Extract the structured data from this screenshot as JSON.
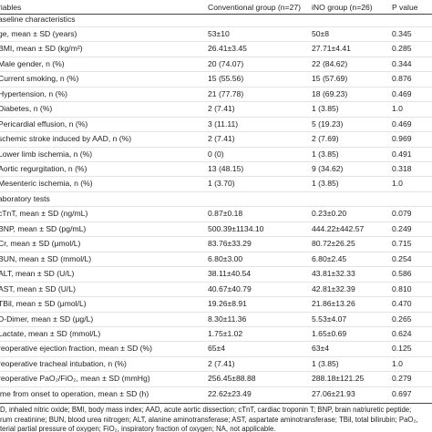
{
  "table": {
    "header": [
      "riables",
      "Conventional group (n=27)",
      "iNO group (n=26)",
      "P value"
    ],
    "rows": [
      [
        "aseline characteristics"
      ],
      [
        "ge, mean ± SD (years)",
        "53±10",
        "50±8",
        "0.345"
      ],
      [
        "BMI, mean ± SD (kg/m²)",
        "26.41±3.45",
        "27.71±4.41",
        "0.285"
      ],
      [
        "Male gender, n (%)",
        "20 (74.07)",
        "22 (84.62)",
        "0.344"
      ],
      [
        "Current smoking, n (%)",
        "15 (55.56)",
        "15 (57.69)",
        "0.876"
      ],
      [
        "Hypertension, n (%)",
        "21 (77.78)",
        "18 (69.23)",
        "0.469"
      ],
      [
        "Diabetes, n (%)",
        "2 (7.41)",
        "1 (3.85)",
        "1.0"
      ],
      [
        "Pericardial effusion, n (%)",
        "3 (11.11)",
        "5 (19.23)",
        "0.469"
      ],
      [
        "schemic stroke induced by AAD, n (%)",
        "2 (7.41)",
        "2 (7.69)",
        "0.969"
      ],
      [
        "Lower limb ischemia, n (%)",
        "0 (0)",
        "1 (3.85)",
        "0.491"
      ],
      [
        "Aortic regurgitation, n (%)",
        "13 (48.15)",
        "9 (34.62)",
        "0.318"
      ],
      [
        "Mesenteric ischemia, n (%)",
        "1 (3.70)",
        "1 (3.85)",
        "1.0"
      ],
      [
        "aboratory tests"
      ],
      [
        "cTnT, mean ± SD (ng/mL)",
        "0.87±0.18",
        "0.23±0.20",
        "0.079"
      ],
      [
        "BNP, mean ± SD (pg/mL)",
        "500.39±1134.10",
        "444.22±442.57",
        "0.249"
      ],
      [
        "Cr, mean ± SD (μmol/L)",
        "83.76±33.29",
        "80.72±26.25",
        "0.715"
      ],
      [
        "BUN, mean ± SD (mmol/L)",
        "6.80±3.00",
        "6.80±2.45",
        "0.254"
      ],
      [
        "ALT, mean ± SD (U/L)",
        "38.11±40.54",
        "43.81±32.33",
        "0.586"
      ],
      [
        "AST, mean ± SD (U/L)",
        "40.67±40.79",
        "42.81±32.39",
        "0.810"
      ],
      [
        "TBil, mean ± SD (μmol/L)",
        "19.26±8.91",
        "21.86±13.26",
        "0.470"
      ],
      [
        "D-Dimer, mean ± SD (μg/L)",
        "8.30±11.36",
        "5.53±4.07",
        "0.265"
      ],
      [
        "Lactate, mean ± SD (mmol/L)",
        "1.75±1.02",
        "1.65±0.69",
        "0.624"
      ],
      [
        "reoperative ejection fraction, mean ± SD (%)",
        "65±4",
        "63±4",
        "0.125"
      ],
      [
        "reoperative tracheal intubation, n (%)",
        "2 (7.41)",
        "1 (3.85)",
        "1.0"
      ],
      [
        "reoperative PaO₂/FiO₂, mean ± SD (mmHg)",
        "256.45±88.88",
        "288.18±121.25",
        "0.279"
      ],
      [
        "ime from onset to operation, mean ± SD (h)",
        "22.62±23.49",
        "27.06±21.93",
        "0.697"
      ]
    ],
    "footnote": [
      "D, inhaled nitric oxide; BMI, body mass index; AAD, acute aortic dissection; cTnT, cardiac troponin T; BNP, brain natriuretic peptide;",
      "rum creatinine; BUN, blood urea nitrogen; ALT, alanine aminotransferase; AST, aspartate aminotransferase; TBil, total bilirubin; PaO₂,",
      "terial partial pressure of oxygen; FiO₂, inspiratory fraction of oxygen; NA, not applicable."
    ]
  }
}
